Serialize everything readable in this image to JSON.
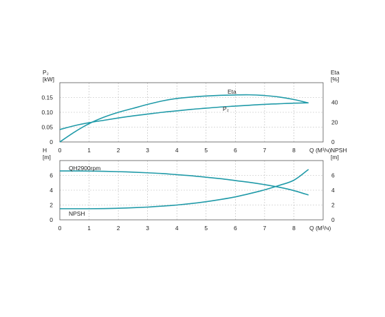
{
  "chart_data": [
    {
      "type": "line",
      "x": [
        0,
        0.5,
        1,
        1.5,
        2,
        2.5,
        3,
        3.5,
        4,
        4.5,
        5,
        5.5,
        6,
        6.5,
        7,
        7.5,
        8,
        8.5
      ],
      "xlim": [
        0,
        9
      ],
      "x_ticks": [
        "0",
        "1",
        "2",
        "3",
        "4",
        "5",
        "6",
        "7",
        "8"
      ],
      "xlabel": "Q (M³/ч)",
      "ylim_left": [
        0,
        0.2
      ],
      "y_ticks_left": [
        "0",
        "0.05",
        "0.10",
        "0.15"
      ],
      "ylabel_left_top": "P₂",
      "ylabel_left_unit": "[kW]",
      "ylim_right": [
        0,
        60
      ],
      "y_ticks_right": [
        "0",
        "20",
        "40"
      ],
      "ylabel_right_top": "Eta",
      "ylabel_right_unit": "[%]",
      "grid": true,
      "series": [
        {
          "name": "Eta",
          "axis": "right",
          "color": "#1f9aa8",
          "values": [
            0,
            10,
            18.5,
            25,
            30,
            34,
            38,
            41.5,
            44,
            45.5,
            46.5,
            47.2,
            47.6,
            47.7,
            47,
            45.5,
            43,
            39.5
          ]
        },
        {
          "name": "P₂",
          "axis": "left",
          "color": "#1f9aa8",
          "values": [
            0.042,
            0.055,
            0.065,
            0.073,
            0.081,
            0.088,
            0.094,
            0.1,
            0.105,
            0.11,
            0.114,
            0.118,
            0.121,
            0.124,
            0.127,
            0.129,
            0.131,
            0.132
          ]
        }
      ]
    },
    {
      "type": "line",
      "x": [
        0,
        0.5,
        1,
        1.5,
        2,
        2.5,
        3,
        3.5,
        4,
        4.5,
        5,
        5.5,
        6,
        6.5,
        7,
        7.5,
        8,
        8.5
      ],
      "xlim": [
        0,
        9
      ],
      "x_ticks": [
        "0",
        "1",
        "2",
        "3",
        "4",
        "5",
        "6",
        "7",
        "8"
      ],
      "xlabel": "Q (M³/ч)",
      "ylim_left": [
        0,
        8
      ],
      "y_ticks_left": [
        "0",
        "2",
        "4",
        "6"
      ],
      "ylabel_left_top": "H",
      "ylabel_left_unit": "[m]",
      "ylim_right": [
        0,
        8
      ],
      "y_ticks_right": [
        "0",
        "2",
        "4",
        "6"
      ],
      "ylabel_right_top": "NPSH",
      "ylabel_right_unit": "[m]",
      "grid": true,
      "series": [
        {
          "name": "QH2900rpm",
          "axis": "left",
          "color": "#1f9aa8",
          "values": [
            6.6,
            6.6,
            6.58,
            6.55,
            6.5,
            6.44,
            6.35,
            6.25,
            6.1,
            5.95,
            5.75,
            5.55,
            5.3,
            5.05,
            4.75,
            4.4,
            3.95,
            3.35
          ]
        },
        {
          "name": "NPSH",
          "axis": "right",
          "color": "#1f9aa8",
          "values": [
            1.5,
            1.5,
            1.5,
            1.52,
            1.56,
            1.63,
            1.72,
            1.85,
            2.0,
            2.2,
            2.45,
            2.75,
            3.1,
            3.55,
            4.05,
            4.65,
            5.35,
            6.8
          ]
        }
      ]
    }
  ]
}
